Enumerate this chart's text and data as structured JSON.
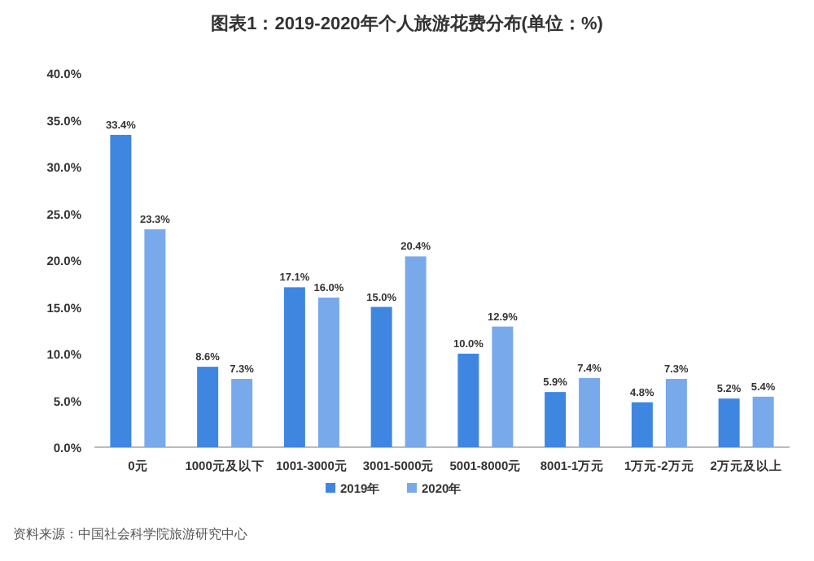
{
  "chart_data": {
    "type": "bar",
    "title": "图表1：2019-2020年个人旅游花费分布(单位：%)",
    "categories": [
      "0元",
      "1000元及以下",
      "1001-3000元",
      "3001-5000元",
      "5001-8000元",
      "8001-1万元",
      "1万元-2万元",
      "2万元及以上"
    ],
    "series": [
      {
        "name": "2019年",
        "color": "#3f86e0",
        "values": [
          33.4,
          8.6,
          17.1,
          15.0,
          10.0,
          5.9,
          4.8,
          5.2
        ],
        "value_labels": [
          "33.4%",
          "8.6%",
          "17.1%",
          "15.0%",
          "10.0%",
          "5.9%",
          "4.8%",
          "5.2%"
        ]
      },
      {
        "name": "2020年",
        "color": "#78a9ea",
        "values": [
          23.3,
          7.3,
          16.0,
          20.4,
          12.9,
          7.4,
          7.3,
          5.4
        ],
        "value_labels": [
          "23.3%",
          "7.3%",
          "16.0%",
          "20.4%",
          "12.9%",
          "7.4%",
          "7.3%",
          "5.4%"
        ]
      }
    ],
    "ylim": [
      0,
      40
    ],
    "yticks": [
      {
        "value": 0,
        "label": "0.0%"
      },
      {
        "value": 5,
        "label": "5.0%"
      },
      {
        "value": 10,
        "label": "10.0%"
      },
      {
        "value": 15,
        "label": "15.0%"
      },
      {
        "value": 20,
        "label": "20.0%"
      },
      {
        "value": 25,
        "label": "25.0%"
      },
      {
        "value": 30,
        "label": "30.0%"
      },
      {
        "value": 35,
        "label": "35.0%"
      },
      {
        "value": 40,
        "label": "40.0%"
      }
    ],
    "legend": "bottom",
    "annotations": [
      "资料来源：中国社会科学院旅游研究中心"
    ]
  }
}
